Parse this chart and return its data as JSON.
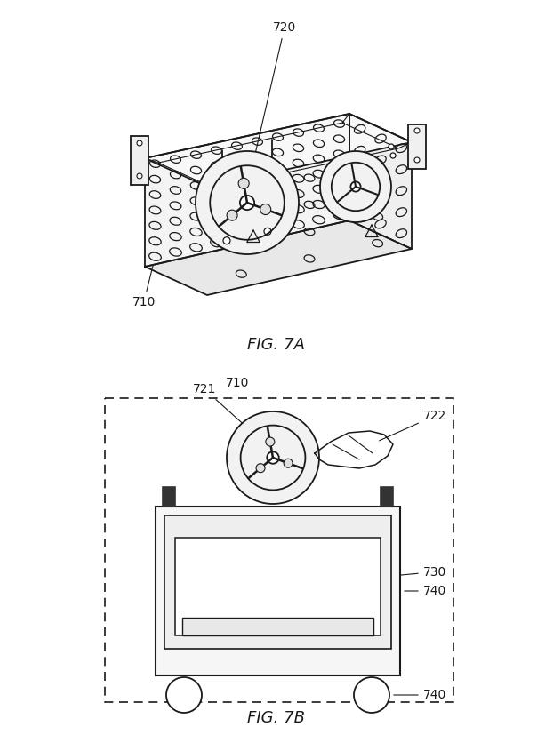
{
  "bg_color": "#ffffff",
  "line_color": "#1a1a1a",
  "fig_width": 6.22,
  "fig_height": 8.27,
  "dpi": 100,
  "fig7a_label": "FIG. 7A",
  "fig7b_label": "FIG. 7B",
  "label_fontsize": 13,
  "annot_fontsize": 10
}
